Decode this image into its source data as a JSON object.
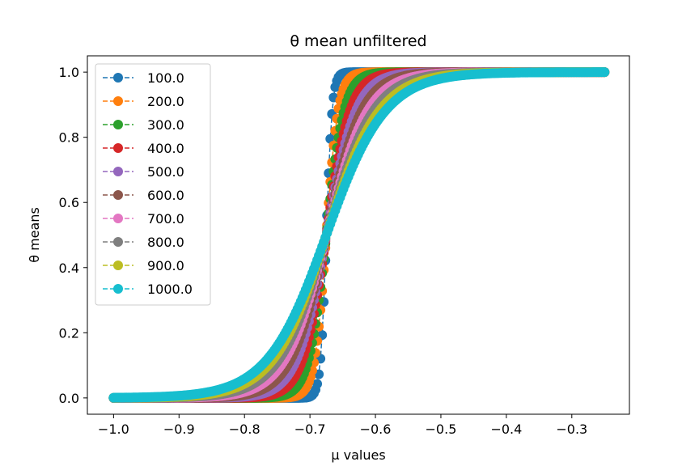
{
  "chart_data": {
    "type": "line",
    "title": "θ mean unfiltered",
    "xlabel": "μ values",
    "ylabel": "θ means",
    "xlim": [
      -1.04,
      -0.212
    ],
    "ylim": [
      -0.05,
      1.05
    ],
    "x_range": [
      -1.0,
      -0.25
    ],
    "x_ticks": [
      -1.0,
      -0.9,
      -0.8,
      -0.7,
      -0.6,
      -0.5,
      -0.4,
      -0.3
    ],
    "x_tick_labels": [
      "−1.0",
      "−0.9",
      "−0.8",
      "−0.7",
      "−0.6",
      "−0.5",
      "−0.4",
      "−0.3"
    ],
    "y_ticks": [
      0.0,
      0.2,
      0.4,
      0.6,
      0.8,
      1.0
    ],
    "y_tick_labels": [
      "0.0",
      "0.2",
      "0.4",
      "0.6",
      "0.8",
      "1.0"
    ],
    "grid": false,
    "legend_position": "upper-left",
    "line_style": "dashed",
    "marker": "circle",
    "series": [
      {
        "name": "100.0",
        "color": "#1f77b4",
        "midpoint": -0.675,
        "scale": 0.0045,
        "samples": [
          [
            -1.0,
            0.0
          ],
          [
            -0.7,
            0.004
          ],
          [
            -0.68,
            0.2
          ],
          [
            -0.675,
            0.5
          ],
          [
            -0.67,
            0.8
          ],
          [
            -0.65,
            0.99
          ],
          [
            -0.25,
            1.0
          ]
        ]
      },
      {
        "name": "200.0",
        "color": "#ff7f0e",
        "midpoint": -0.675,
        "scale": 0.009,
        "samples": [
          [
            -1.0,
            0.0
          ],
          [
            -0.7,
            0.06
          ],
          [
            -0.675,
            0.5
          ],
          [
            -0.65,
            0.94
          ],
          [
            -0.6,
            1.0
          ],
          [
            -0.25,
            1.0
          ]
        ]
      },
      {
        "name": "300.0",
        "color": "#2ca02c",
        "midpoint": -0.675,
        "scale": 0.0135,
        "samples": [
          [
            -1.0,
            0.0
          ],
          [
            -0.75,
            0.004
          ],
          [
            -0.7,
            0.14
          ],
          [
            -0.675,
            0.5
          ],
          [
            -0.65,
            0.86
          ],
          [
            -0.6,
            0.996
          ],
          [
            -0.25,
            1.0
          ]
        ]
      },
      {
        "name": "400.0",
        "color": "#d62728",
        "midpoint": -0.675,
        "scale": 0.018,
        "samples": [
          [
            -1.0,
            0.0
          ],
          [
            -0.75,
            0.016
          ],
          [
            -0.7,
            0.2
          ],
          [
            -0.675,
            0.5
          ],
          [
            -0.65,
            0.8
          ],
          [
            -0.6,
            0.984
          ],
          [
            -0.25,
            1.0
          ]
        ]
      },
      {
        "name": "500.0",
        "color": "#9467bd",
        "midpoint": -0.675,
        "scale": 0.0225,
        "samples": [
          [
            -1.0,
            0.0
          ],
          [
            -0.8,
            0.004
          ],
          [
            -0.7,
            0.25
          ],
          [
            -0.675,
            0.5
          ],
          [
            -0.65,
            0.75
          ],
          [
            -0.55,
            0.996
          ],
          [
            -0.25,
            1.0
          ]
        ]
      },
      {
        "name": "600.0",
        "color": "#8c564b",
        "midpoint": -0.675,
        "scale": 0.027,
        "samples": [
          [
            -1.0,
            0.0
          ],
          [
            -0.8,
            0.01
          ],
          [
            -0.7,
            0.28
          ],
          [
            -0.675,
            0.5
          ],
          [
            -0.65,
            0.72
          ],
          [
            -0.55,
            0.99
          ],
          [
            -0.25,
            1.0
          ]
        ]
      },
      {
        "name": "700.0",
        "color": "#e377c2",
        "midpoint": -0.675,
        "scale": 0.0315,
        "samples": [
          [
            -1.0,
            0.0
          ],
          [
            -0.8,
            0.02
          ],
          [
            -0.7,
            0.31
          ],
          [
            -0.675,
            0.5
          ],
          [
            -0.65,
            0.69
          ],
          [
            -0.55,
            0.98
          ],
          [
            -0.25,
            1.0
          ]
        ]
      },
      {
        "name": "800.0",
        "color": "#7f7f7f",
        "midpoint": -0.675,
        "scale": 0.036,
        "samples": [
          [
            -1.0,
            0.0
          ],
          [
            -0.8,
            0.03
          ],
          [
            -0.7,
            0.33
          ],
          [
            -0.675,
            0.5
          ],
          [
            -0.65,
            0.67
          ],
          [
            -0.55,
            0.97
          ],
          [
            -0.25,
            1.0
          ]
        ]
      },
      {
        "name": "900.0",
        "color": "#bcbd22",
        "midpoint": -0.675,
        "scale": 0.0405,
        "samples": [
          [
            -1.0,
            0.0
          ],
          [
            -0.8,
            0.045
          ],
          [
            -0.7,
            0.35
          ],
          [
            -0.675,
            0.5
          ],
          [
            -0.65,
            0.65
          ],
          [
            -0.55,
            0.955
          ],
          [
            -0.25,
            1.0
          ]
        ]
      },
      {
        "name": "1000.0",
        "color": "#17becf",
        "midpoint": -0.675,
        "scale": 0.045,
        "samples": [
          [
            -1.0,
            0.0
          ],
          [
            -0.9,
            0.004
          ],
          [
            -0.8,
            0.06
          ],
          [
            -0.7,
            0.36
          ],
          [
            -0.675,
            0.5
          ],
          [
            -0.65,
            0.64
          ],
          [
            -0.55,
            0.94
          ],
          [
            -0.25,
            1.0
          ]
        ]
      }
    ]
  }
}
